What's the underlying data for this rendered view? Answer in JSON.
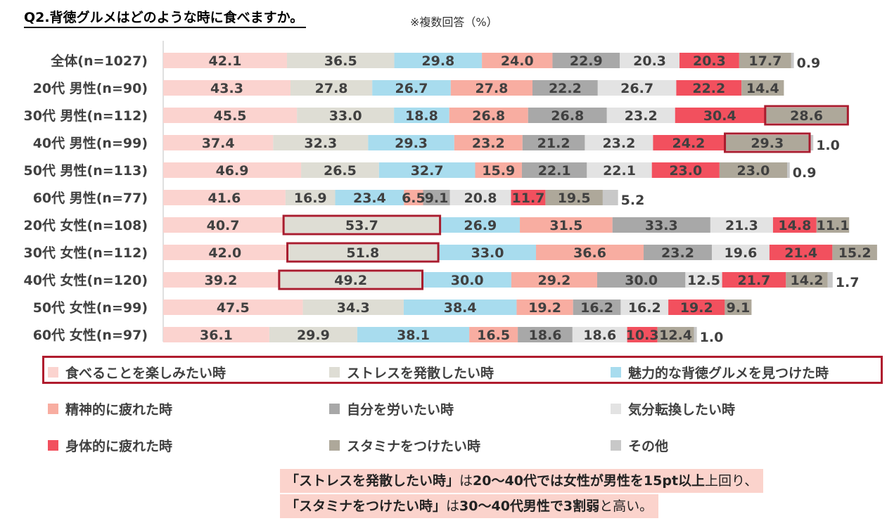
{
  "title": "Q2.背徳グルメはどのような時に食べますか。",
  "title_note": "※複数回答（%）",
  "chart_data": {
    "type": "bar",
    "orientation": "horizontal-stacked",
    "categories": [
      "全体(n=1027)",
      "20代 男性(n=90)",
      "30代 男性(n=112)",
      "40代 男性(n=99)",
      "50代 男性(n=113)",
      "60代 男性(n=77)",
      "20代 女性(n=108)",
      "30代 女性(n=112)",
      "40代 女性(n=120)",
      "50代 女性(n=99)",
      "60代 女性(n=97)"
    ],
    "series": [
      {
        "name": "食べることを楽しみたい時",
        "color": "#fbd3cf",
        "values": [
          42.1,
          43.3,
          45.5,
          37.4,
          46.9,
          41.6,
          40.7,
          42.0,
          39.2,
          47.5,
          36.1
        ]
      },
      {
        "name": "ストレスを発散したい時",
        "color": "#deddd4",
        "values": [
          36.5,
          27.8,
          33.0,
          32.3,
          26.5,
          16.9,
          53.7,
          51.8,
          49.2,
          34.3,
          29.9
        ]
      },
      {
        "name": "魅力的な背徳グルメを見つけた時",
        "color": "#a8dcee",
        "values": [
          29.8,
          26.7,
          18.8,
          29.3,
          32.7,
          23.4,
          26.9,
          33.0,
          30.0,
          38.4,
          38.1
        ]
      },
      {
        "name": "精神的に疲れた時",
        "color": "#f8ada1",
        "values": [
          24.0,
          27.8,
          26.8,
          23.2,
          15.9,
          6.5,
          31.5,
          36.6,
          29.2,
          19.2,
          16.5
        ]
      },
      {
        "name": "自分を労いたい時",
        "color": "#a8a8a8",
        "values": [
          22.9,
          22.2,
          26.8,
          21.2,
          22.1,
          9.1,
          33.3,
          23.2,
          30.0,
          16.2,
          18.6
        ]
      },
      {
        "name": "気分転換したい時",
        "color": "#e3e3e3",
        "values": [
          20.3,
          26.7,
          23.2,
          23.2,
          22.1,
          20.8,
          21.3,
          19.6,
          12.5,
          16.2,
          18.6
        ]
      },
      {
        "name": "身体的に疲れた時",
        "color": "#f2505e",
        "values": [
          20.3,
          22.2,
          30.4,
          24.2,
          23.0,
          11.7,
          14.8,
          21.4,
          21.7,
          19.2,
          10.3
        ]
      },
      {
        "name": "スタミナをつけたい時",
        "color": "#aea89a",
        "values": [
          17.7,
          14.4,
          28.6,
          29.3,
          23.0,
          19.5,
          11.1,
          15.2,
          14.2,
          9.1,
          12.4
        ]
      },
      {
        "name": "その他",
        "color": "#c8c8c8",
        "values": [
          0.9,
          0.0,
          0.0,
          1.0,
          0.9,
          5.2,
          0.0,
          0.0,
          1.7,
          0.0,
          1.0
        ]
      }
    ],
    "labels": [
      [
        "42.1",
        "36.5",
        "29.8",
        "24.0",
        "22.9",
        "20.3",
        "20.3",
        "17.7",
        "0.9"
      ],
      [
        "43.3",
        "27.8",
        "26.7",
        "27.8",
        "22.2",
        "26.7",
        "22.2",
        "14.4",
        ""
      ],
      [
        "45.5",
        "33.0",
        "18.8",
        "26.8",
        "26.8",
        "23.2",
        "30.4",
        "28.6",
        ""
      ],
      [
        "37.4",
        "32.3",
        "29.3",
        "23.2",
        "21.2",
        "23.2",
        "24.2",
        "29.3",
        "1.0"
      ],
      [
        "46.9",
        "26.5",
        "32.7",
        "15.9",
        "22.1",
        "22.1",
        "23.0",
        "23.0",
        "0.9"
      ],
      [
        "41.6",
        "16.9",
        "23.4",
        "6.5",
        "9.1",
        "20.8",
        "11.7",
        "19.5",
        "5.2"
      ],
      [
        "40.7",
        "53.7",
        "26.9",
        "31.5",
        "33.3",
        "21.3",
        "14.8",
        "11.1",
        ""
      ],
      [
        "42.0",
        "51.8",
        "33.0",
        "36.6",
        "23.2",
        "19.6",
        "21.4",
        "15.2",
        ""
      ],
      [
        "39.2",
        "49.2",
        "30.0",
        "29.2",
        "30.0",
        "12.5",
        "21.7",
        "14.2",
        "1.7"
      ],
      [
        "47.5",
        "34.3",
        "38.4",
        "19.2",
        "16.2",
        "16.2",
        "19.2",
        "9.1",
        ""
      ],
      [
        "36.1",
        "29.9",
        "38.1",
        "16.5",
        "18.6",
        "18.6",
        "10.3",
        "12.4",
        "1.0"
      ]
    ],
    "highlights": [
      [
        2,
        7
      ],
      [
        3,
        7
      ],
      [
        6,
        1
      ],
      [
        7,
        1
      ],
      [
        8,
        1
      ]
    ],
    "legend_position": "bottom",
    "xlabel": "",
    "ylabel": ""
  },
  "note": {
    "line1": [
      {
        "text": "「ストレスを発散したい時」",
        "em": true
      },
      {
        "text": "は",
        "em": false
      },
      {
        "text": "20～40代では女性が男性を15pt以上",
        "em": true
      },
      {
        "text": "上回り、",
        "em": false
      }
    ],
    "line2": [
      {
        "text": "「スタミナをつけたい時」",
        "em": true
      },
      {
        "text": "は",
        "em": false
      },
      {
        "text": "30～40代男性で3割弱",
        "em": true
      },
      {
        "text": "と高い。",
        "em": false
      }
    ]
  }
}
